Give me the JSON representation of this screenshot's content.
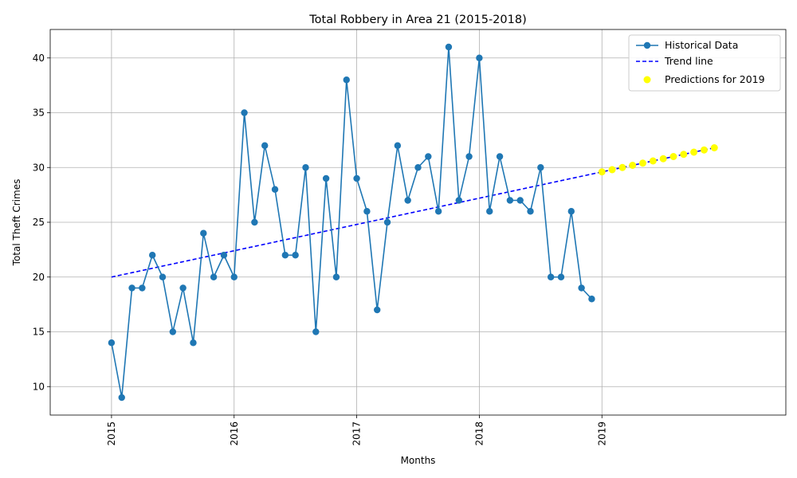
{
  "chart_data": {
    "type": "line",
    "title": "Total Robbery in Area 21 (2015-2018)",
    "xlabel": "Months",
    "ylabel": "Total Theft Crimes",
    "xlim": [
      "2014-07",
      "2020-07"
    ],
    "ylim": [
      7.4,
      42.6
    ],
    "x_ticks": [
      "2015",
      "2016",
      "2017",
      "2018",
      "2019"
    ],
    "y_ticks": [
      10,
      15,
      20,
      25,
      30,
      35,
      40
    ],
    "grid": true,
    "legend_position": "upper-right",
    "series": [
      {
        "name": "Historical Data",
        "style": "line-markers",
        "color": "#1f77b4",
        "x": [
          "2015-01",
          "2015-02",
          "2015-03",
          "2015-04",
          "2015-05",
          "2015-06",
          "2015-07",
          "2015-08",
          "2015-09",
          "2015-10",
          "2015-11",
          "2015-12",
          "2016-01",
          "2016-02",
          "2016-03",
          "2016-04",
          "2016-05",
          "2016-06",
          "2016-07",
          "2016-08",
          "2016-09",
          "2016-10",
          "2016-11",
          "2016-12",
          "2017-01",
          "2017-02",
          "2017-03",
          "2017-04",
          "2017-05",
          "2017-06",
          "2017-07",
          "2017-08",
          "2017-09",
          "2017-10",
          "2017-11",
          "2017-12",
          "2018-01",
          "2018-02",
          "2018-03",
          "2018-04",
          "2018-05",
          "2018-06",
          "2018-07",
          "2018-08",
          "2018-09",
          "2018-10",
          "2018-11",
          "2018-12"
        ],
        "values": [
          14,
          9,
          19,
          19,
          22,
          20,
          15,
          19,
          14,
          24,
          20,
          22,
          20,
          35,
          25,
          32,
          28,
          22,
          22,
          30,
          15,
          29,
          20,
          38,
          29,
          26,
          17,
          25,
          32,
          27,
          30,
          31,
          26,
          41,
          27,
          31,
          40,
          26,
          31,
          27,
          27,
          26,
          30,
          20,
          20,
          26,
          19,
          18
        ]
      },
      {
        "name": "Trend line",
        "style": "dashed",
        "color": "#0000ff",
        "x": [
          "2015-01",
          "2019-12"
        ],
        "values": [
          20.0,
          31.8
        ]
      },
      {
        "name": "Predictions for 2019",
        "style": "scatter",
        "color": "#ffff00",
        "x": [
          "2019-01",
          "2019-02",
          "2019-03",
          "2019-04",
          "2019-05",
          "2019-06",
          "2019-07",
          "2019-08",
          "2019-09",
          "2019-10",
          "2019-11",
          "2019-12"
        ],
        "values": [
          29.6,
          29.8,
          30.0,
          30.2,
          30.4,
          30.6,
          30.8,
          31.0,
          31.2,
          31.4,
          31.6,
          31.8
        ]
      }
    ]
  }
}
